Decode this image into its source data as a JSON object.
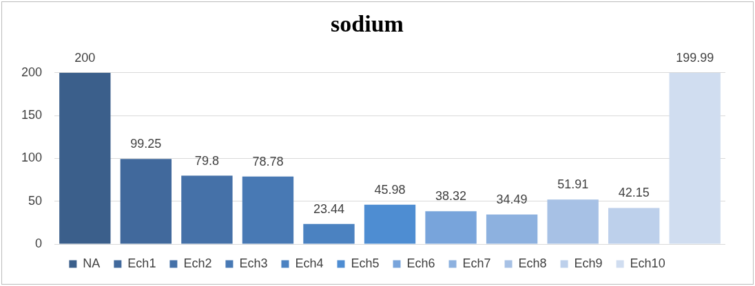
{
  "chart_data": {
    "type": "bar",
    "title": "sodium",
    "categories": [
      null
    ],
    "series": [
      {
        "name": "NA",
        "color": "#3b5f8b",
        "values": [
          200
        ]
      },
      {
        "name": "Ech1",
        "color": "#41699c",
        "values": [
          99.25
        ]
      },
      {
        "name": "Ech2",
        "color": "#4571a8",
        "values": [
          79.8
        ]
      },
      {
        "name": "Ech3",
        "color": "#4879b4",
        "values": [
          78.78
        ]
      },
      {
        "name": "Ech4",
        "color": "#4b82c1",
        "values": [
          23.44
        ]
      },
      {
        "name": "Ech5",
        "color": "#4e8dd2",
        "values": [
          45.98
        ]
      },
      {
        "name": "Ech6",
        "color": "#78a4db",
        "values": [
          38.32
        ]
      },
      {
        "name": "Ech7",
        "color": "#8db1df",
        "values": [
          34.49
        ]
      },
      {
        "name": "Ech8",
        "color": "#a7c1e5",
        "values": [
          51.91
        ]
      },
      {
        "name": "Ech9",
        "color": "#bdd0eb",
        "values": [
          42.15
        ]
      },
      {
        "name": "Ech10",
        "color": "#d0ddf0",
        "values": [
          199.99
        ]
      }
    ],
    "ylim": [
      0,
      200
    ],
    "yticks": [
      0,
      50,
      100,
      150,
      200
    ],
    "grid": "y",
    "legend": "bottom",
    "data_labels": true
  }
}
